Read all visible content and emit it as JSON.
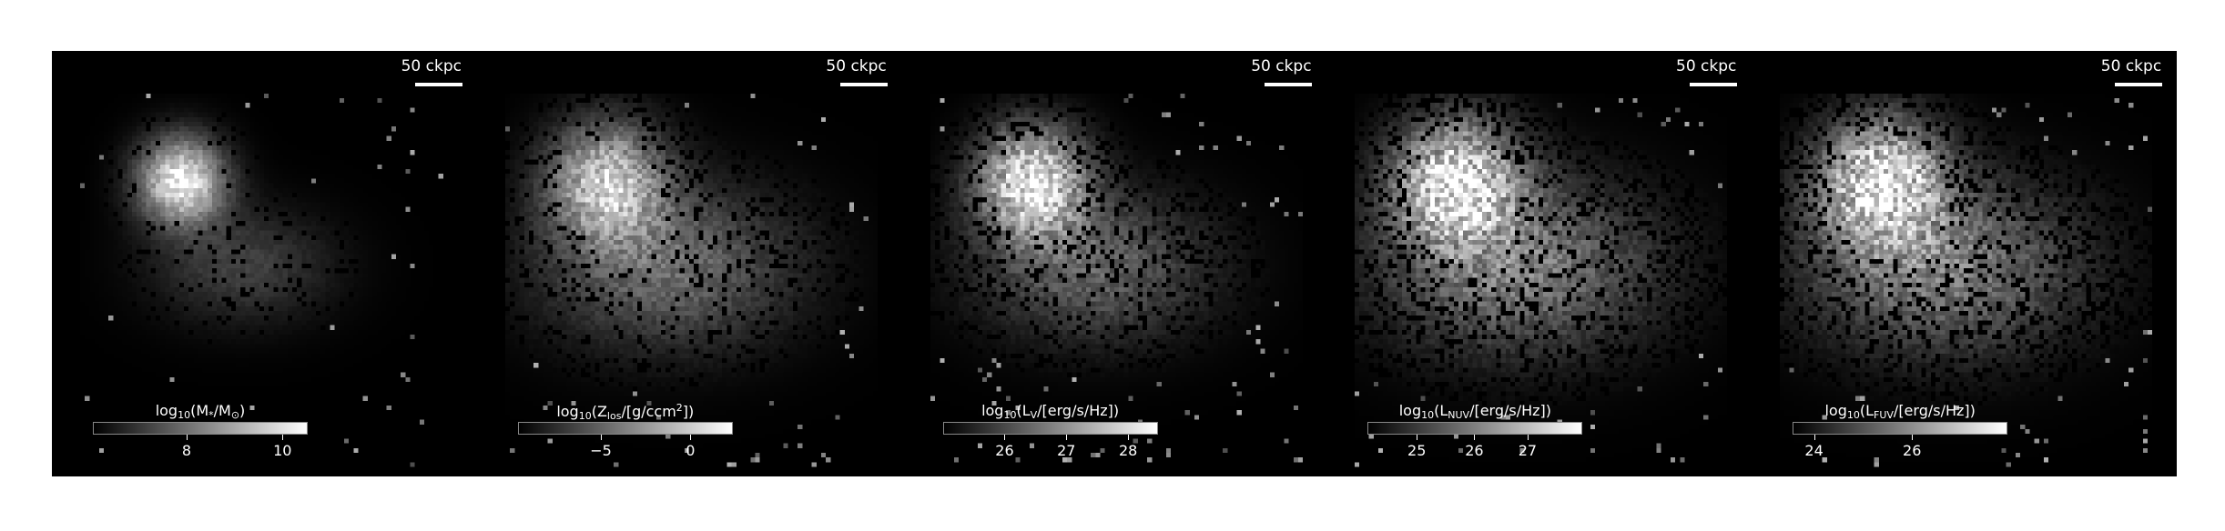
{
  "figure": {
    "panels": [
      {
        "scalebar": "50 ckpc",
        "colorbar": {
          "label_pre": "log",
          "label_sub": "10",
          "label_mid": "(M",
          "label_sub2": "*",
          "label_post": "/M",
          "label_sub3": "⊙",
          "label_end": ")",
          "ticks": [
            "8",
            "10"
          ],
          "tick_positions": [
            0.44,
            0.89
          ]
        },
        "brightness": 0.95,
        "spread": 0.55,
        "noise": 0.35
      },
      {
        "scalebar": "50 ckpc",
        "colorbar": {
          "label_pre": "log",
          "label_sub": "10",
          "label_mid": "(Z",
          "label_sub2": "los",
          "label_post": "/[g/ccm",
          "label_sub3": "2",
          "label_end": "])",
          "ticks": [
            "−5",
            "0"
          ],
          "tick_positions": [
            0.39,
            0.81
          ]
        },
        "brightness": 0.75,
        "spread": 0.9,
        "noise": 0.55
      },
      {
        "scalebar": "50 ckpc",
        "colorbar": {
          "label_pre": "log",
          "label_sub": "10",
          "label_mid": "(L",
          "label_sub2": "V",
          "label_post": "/[erg/s/Hz])",
          "label_sub3": "",
          "label_end": "",
          "ticks": [
            "26",
            "27",
            "28"
          ],
          "tick_positions": [
            0.29,
            0.58,
            0.87
          ]
        },
        "brightness": 0.9,
        "spread": 0.8,
        "noise": 0.7
      },
      {
        "scalebar": "50 ckpc",
        "colorbar": {
          "label_pre": "log",
          "label_sub": "10",
          "label_mid": "(L",
          "label_sub2": "NUV",
          "label_post": "/[erg/s/Hz])",
          "label_sub3": "",
          "label_end": "",
          "ticks": [
            "25",
            "26",
            "27"
          ],
          "tick_positions": [
            0.23,
            0.5,
            0.75
          ]
        },
        "brightness": 0.85,
        "spread": 1.0,
        "noise": 0.8
      },
      {
        "scalebar": "50 ckpc",
        "colorbar": {
          "label_pre": "log",
          "label_sub": "10",
          "label_mid": "(L",
          "label_sub2": "FUV",
          "label_post": "/[erg/s/Hz])",
          "label_sub3": "",
          "label_end": "",
          "ticks": [
            "24",
            "26"
          ],
          "tick_positions": [
            0.1,
            0.56
          ]
        },
        "brightness": 0.85,
        "spread": 1.0,
        "noise": 0.8
      }
    ]
  }
}
